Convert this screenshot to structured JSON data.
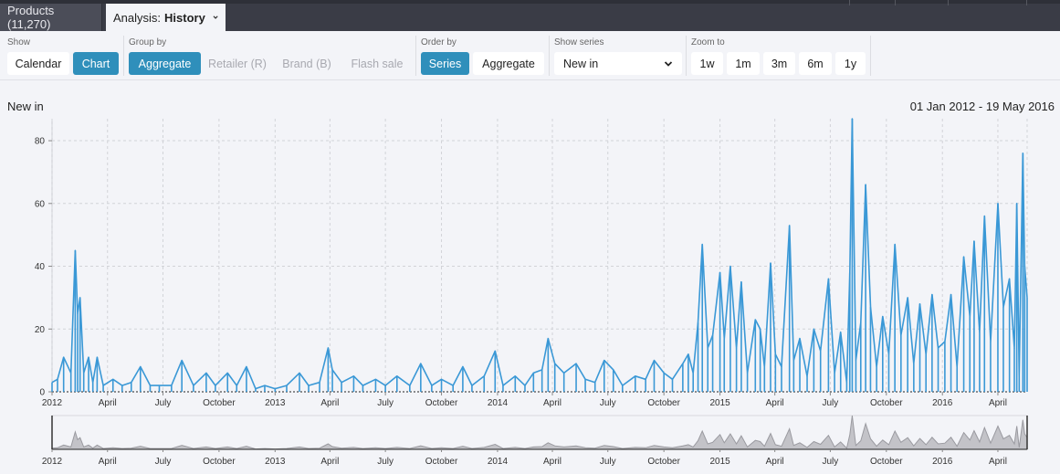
{
  "tabs": {
    "products": "Products (11,270)",
    "analysis_prefix": "Analysis:",
    "analysis_name": "History"
  },
  "toolbar": {
    "show": {
      "label": "Show",
      "calendar": "Calendar",
      "chart": "Chart"
    },
    "group_by": {
      "label": "Group by",
      "aggregate": "Aggregate",
      "retailer": "Retailer (R)",
      "brand": "Brand (B)",
      "flash_sale": "Flash sale"
    },
    "order_by": {
      "label": "Order by",
      "series": "Series",
      "aggregate": "Aggregate"
    },
    "show_series": {
      "label": "Show series",
      "selected": "New in"
    },
    "zoom_to": {
      "label": "Zoom to",
      "options": [
        "1w",
        "1m",
        "3m",
        "6m",
        "1y"
      ]
    }
  },
  "chart_header": {
    "title": "New in",
    "range": "01 Jan 2012 - 19 May 2016"
  },
  "colors": {
    "series": "#3a98d6",
    "overview": "#9a9aa0",
    "active_button": "#2f8fbb"
  },
  "chart_data": {
    "type": "line",
    "title": "New in",
    "ylim": [
      0,
      87
    ],
    "yticks": [
      0,
      20,
      40,
      60,
      80
    ],
    "grid": true,
    "xrange": [
      "2012-01-01",
      "2016-05-19"
    ],
    "xticks": [
      {
        "date": "2012-01-01",
        "label": "2012"
      },
      {
        "date": "2012-04-01",
        "label": "April"
      },
      {
        "date": "2012-07-01",
        "label": "July"
      },
      {
        "date": "2012-10-01",
        "label": "October"
      },
      {
        "date": "2013-01-01",
        "label": "2013"
      },
      {
        "date": "2013-04-01",
        "label": "April"
      },
      {
        "date": "2013-07-01",
        "label": "July"
      },
      {
        "date": "2013-10-01",
        "label": "October"
      },
      {
        "date": "2014-01-01",
        "label": "2014"
      },
      {
        "date": "2014-04-01",
        "label": "April"
      },
      {
        "date": "2014-07-01",
        "label": "July"
      },
      {
        "date": "2014-10-01",
        "label": "October"
      },
      {
        "date": "2015-01-01",
        "label": "2015"
      },
      {
        "date": "2015-04-01",
        "label": "April"
      },
      {
        "date": "2015-07-01",
        "label": "July"
      },
      {
        "date": "2015-10-01",
        "label": "October"
      },
      {
        "date": "2016-01-01",
        "label": "2016"
      },
      {
        "date": "2016-04-01",
        "label": "April"
      }
    ],
    "series": [
      {
        "values": [
          [
            "2012-01-01",
            3
          ],
          [
            "2012-01-10",
            4
          ],
          [
            "2012-01-20",
            11
          ],
          [
            "2012-02-01",
            6
          ],
          [
            "2012-02-08",
            45
          ],
          [
            "2012-02-12",
            25
          ],
          [
            "2012-02-16",
            30
          ],
          [
            "2012-02-22",
            6
          ],
          [
            "2012-03-01",
            11
          ],
          [
            "2012-03-08",
            3
          ],
          [
            "2012-03-15",
            11
          ],
          [
            "2012-03-25",
            2
          ],
          [
            "2012-04-10",
            4
          ],
          [
            "2012-04-25",
            2
          ],
          [
            "2012-05-10",
            3
          ],
          [
            "2012-05-25",
            8
          ],
          [
            "2012-06-10",
            2
          ],
          [
            "2012-06-25",
            2
          ],
          [
            "2012-07-15",
            2
          ],
          [
            "2012-08-01",
            10
          ],
          [
            "2012-08-20",
            2
          ],
          [
            "2012-09-10",
            6
          ],
          [
            "2012-09-25",
            2
          ],
          [
            "2012-10-15",
            6
          ],
          [
            "2012-10-30",
            2
          ],
          [
            "2012-11-15",
            8
          ],
          [
            "2012-11-30",
            1
          ],
          [
            "2012-12-15",
            2
          ],
          [
            "2013-01-01",
            1
          ],
          [
            "2013-01-20",
            2
          ],
          [
            "2013-02-10",
            6
          ],
          [
            "2013-02-25",
            2
          ],
          [
            "2013-03-15",
            3
          ],
          [
            "2013-03-29",
            14
          ],
          [
            "2013-04-05",
            7
          ],
          [
            "2013-04-20",
            3
          ],
          [
            "2013-05-10",
            5
          ],
          [
            "2013-05-25",
            2
          ],
          [
            "2013-06-15",
            4
          ],
          [
            "2013-07-01",
            2
          ],
          [
            "2013-07-20",
            5
          ],
          [
            "2013-08-10",
            2
          ],
          [
            "2013-08-28",
            9
          ],
          [
            "2013-09-15",
            2
          ],
          [
            "2013-10-01",
            4
          ],
          [
            "2013-10-20",
            2
          ],
          [
            "2013-11-05",
            8
          ],
          [
            "2013-11-20",
            2
          ],
          [
            "2013-12-10",
            5
          ],
          [
            "2013-12-28",
            13
          ],
          [
            "2014-01-10",
            2
          ],
          [
            "2014-01-30",
            5
          ],
          [
            "2014-02-15",
            2
          ],
          [
            "2014-03-01",
            6
          ],
          [
            "2014-03-15",
            7
          ],
          [
            "2014-03-25",
            17
          ],
          [
            "2014-04-05",
            9
          ],
          [
            "2014-04-20",
            6
          ],
          [
            "2014-05-10",
            9
          ],
          [
            "2014-05-25",
            4
          ],
          [
            "2014-06-10",
            3
          ],
          [
            "2014-06-25",
            10
          ],
          [
            "2014-07-10",
            7
          ],
          [
            "2014-07-25",
            2
          ],
          [
            "2014-08-15",
            5
          ],
          [
            "2014-09-01",
            4
          ],
          [
            "2014-09-15",
            10
          ],
          [
            "2014-10-01",
            6
          ],
          [
            "2014-10-15",
            4
          ],
          [
            "2014-11-01",
            9
          ],
          [
            "2014-11-10",
            12
          ],
          [
            "2014-11-18",
            6
          ],
          [
            "2014-11-26",
            22
          ],
          [
            "2014-12-03",
            47
          ],
          [
            "2014-12-12",
            14
          ],
          [
            "2014-12-20",
            18
          ],
          [
            "2015-01-01",
            38
          ],
          [
            "2015-01-08",
            17
          ],
          [
            "2015-01-18",
            40
          ],
          [
            "2015-01-28",
            14
          ],
          [
            "2015-02-05",
            35
          ],
          [
            "2015-02-15",
            6
          ],
          [
            "2015-02-28",
            23
          ],
          [
            "2015-03-08",
            20
          ],
          [
            "2015-03-15",
            8
          ],
          [
            "2015-03-25",
            41
          ],
          [
            "2015-04-02",
            12
          ],
          [
            "2015-04-12",
            8
          ],
          [
            "2015-04-25",
            53
          ],
          [
            "2015-05-02",
            10
          ],
          [
            "2015-05-12",
            17
          ],
          [
            "2015-05-24",
            5
          ],
          [
            "2015-06-04",
            20
          ],
          [
            "2015-06-15",
            13
          ],
          [
            "2015-06-28",
            36
          ],
          [
            "2015-07-08",
            6
          ],
          [
            "2015-07-18",
            19
          ],
          [
            "2015-07-28",
            3
          ],
          [
            "2015-08-02",
            38
          ],
          [
            "2015-08-06",
            87
          ],
          [
            "2015-08-12",
            10
          ],
          [
            "2015-08-20",
            22
          ],
          [
            "2015-08-28",
            66
          ],
          [
            "2015-09-05",
            27
          ],
          [
            "2015-09-15",
            8
          ],
          [
            "2015-09-25",
            24
          ],
          [
            "2015-10-05",
            12
          ],
          [
            "2015-10-15",
            47
          ],
          [
            "2015-10-25",
            18
          ],
          [
            "2015-11-05",
            30
          ],
          [
            "2015-11-15",
            9
          ],
          [
            "2015-11-25",
            28
          ],
          [
            "2015-12-05",
            12
          ],
          [
            "2015-12-15",
            31
          ],
          [
            "2015-12-25",
            14
          ],
          [
            "2016-01-05",
            16
          ],
          [
            "2016-01-15",
            31
          ],
          [
            "2016-01-25",
            8
          ],
          [
            "2016-02-05",
            43
          ],
          [
            "2016-02-15",
            24
          ],
          [
            "2016-02-22",
            48
          ],
          [
            "2016-03-02",
            19
          ],
          [
            "2016-03-10",
            56
          ],
          [
            "2016-03-20",
            16
          ],
          [
            "2016-04-01",
            60
          ],
          [
            "2016-04-10",
            27
          ],
          [
            "2016-04-20",
            36
          ],
          [
            "2016-04-28",
            14
          ],
          [
            "2016-05-02",
            60
          ],
          [
            "2016-05-06",
            5
          ],
          [
            "2016-05-12",
            76
          ],
          [
            "2016-05-15",
            40
          ],
          [
            "2016-05-19",
            30
          ]
        ]
      }
    ]
  }
}
